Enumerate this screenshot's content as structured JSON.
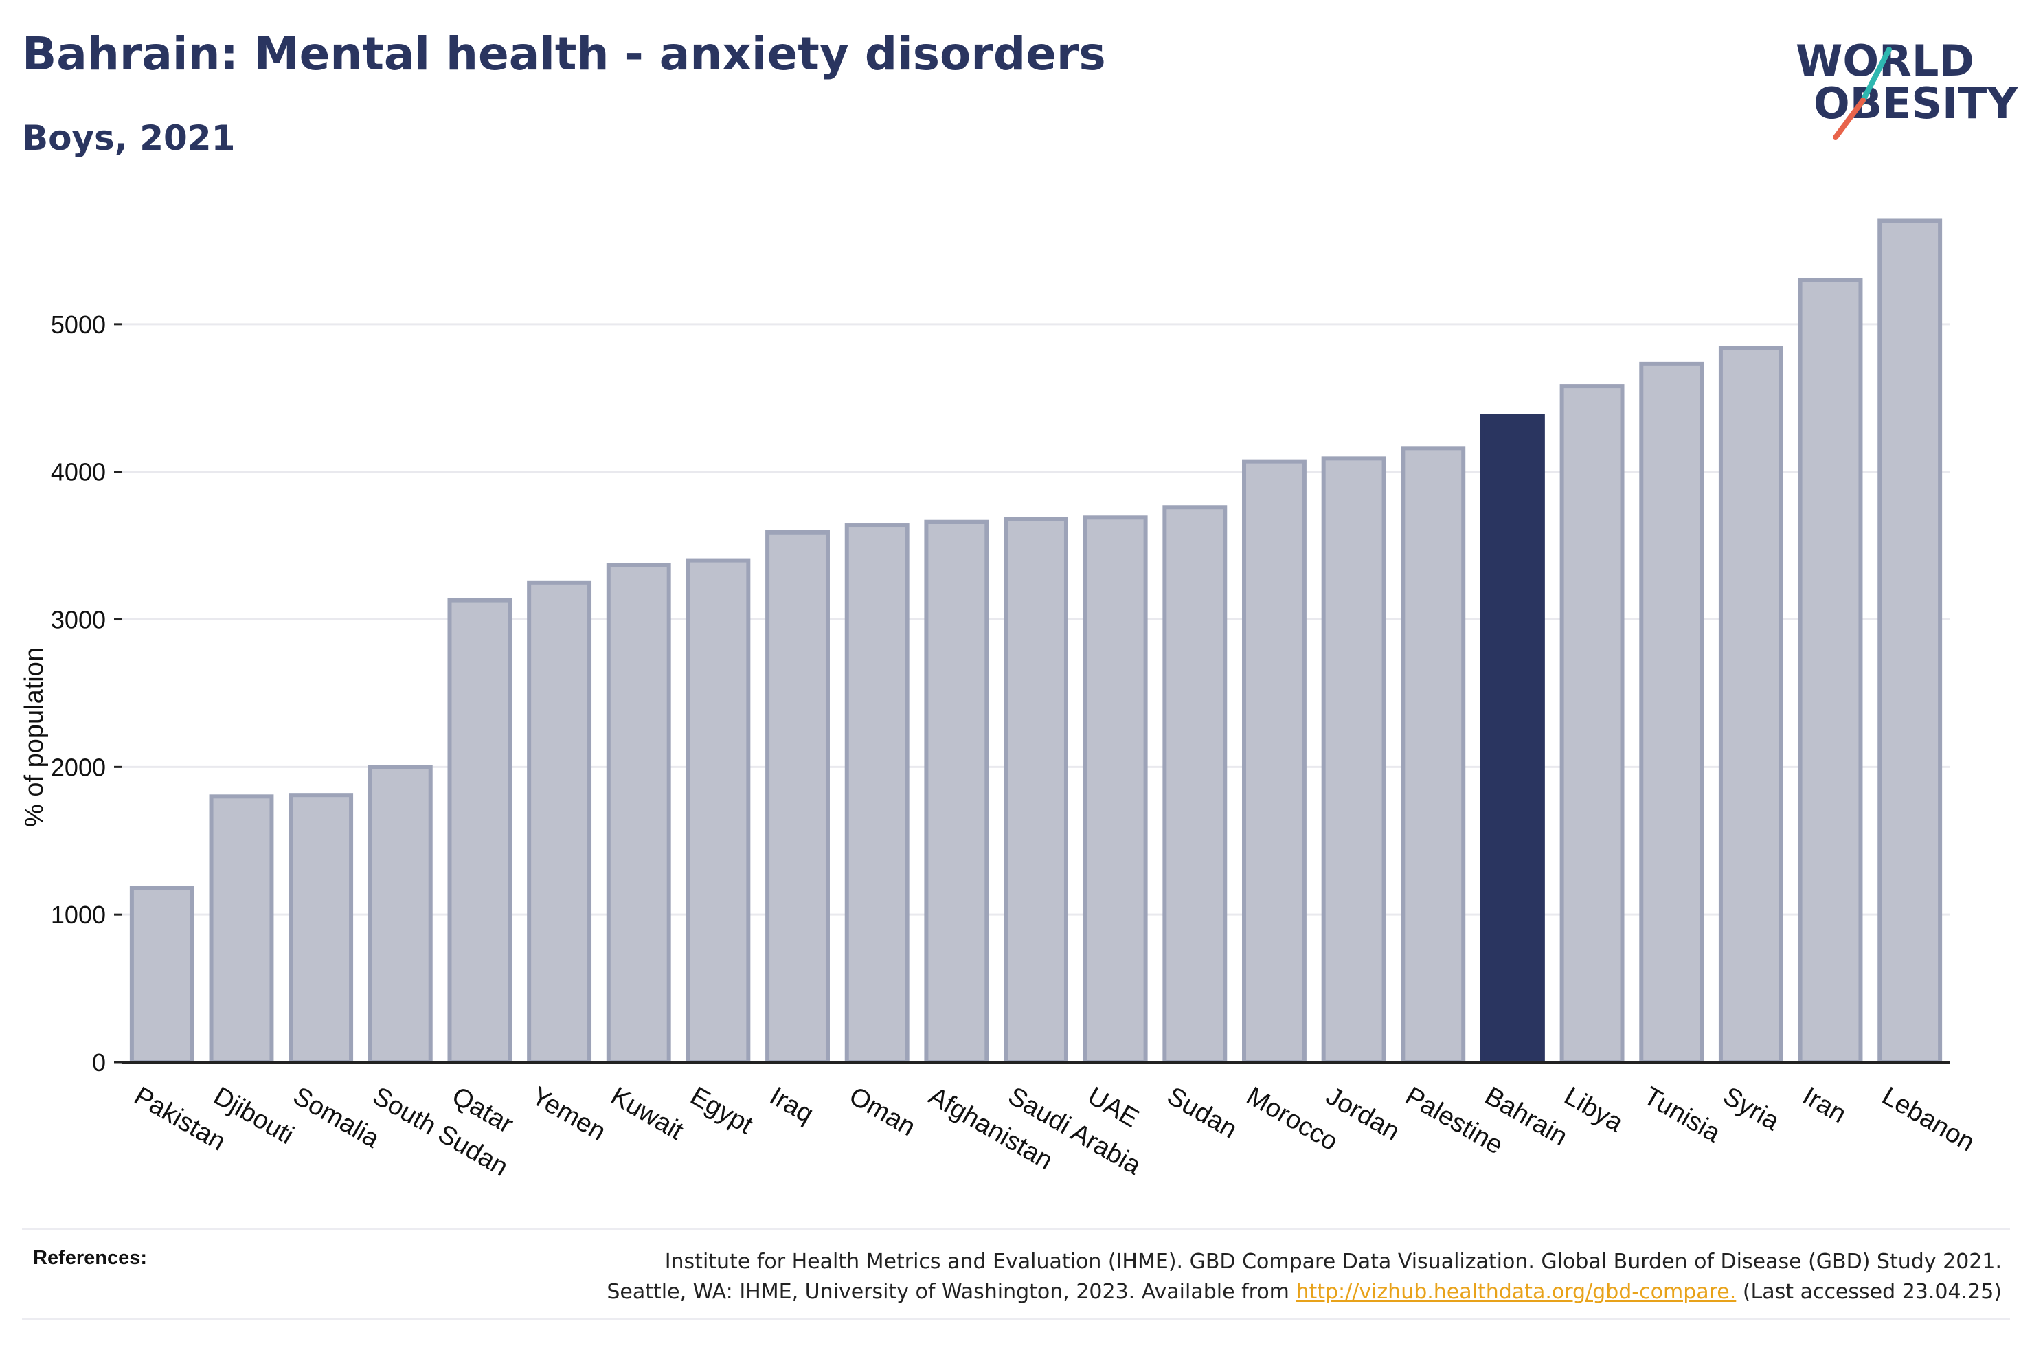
{
  "header": {
    "title": "Bahrain: Mental health - anxiety disorders",
    "subtitle": "Boys, 2021"
  },
  "logo": {
    "line1": "WORLD",
    "line2": "OBESITY",
    "colors": {
      "text": "#2a3560",
      "slash_orange": "#e8634a",
      "slash_teal": "#2fb7b0"
    }
  },
  "colors": {
    "bar_default_fill": "#bec1cd",
    "bar_default_stroke": "#9da3b8",
    "bar_highlight": "#2a3560",
    "grid": "#e9e9ee",
    "axis": "#222222"
  },
  "chart_data": {
    "type": "bar",
    "title": "Bahrain: Mental health - anxiety disorders",
    "subtitle": "Boys, 2021",
    "xlabel": "",
    "ylabel": "% of population",
    "ylim": [
      0,
      5800
    ],
    "yticks": [
      0,
      1000,
      2000,
      3000,
      4000,
      5000
    ],
    "grid": true,
    "highlight": "Bahrain",
    "categories": [
      "Pakistan",
      "Djibouti",
      "Somalia",
      "South Sudan",
      "Qatar",
      "Yemen",
      "Kuwait",
      "Egypt",
      "Iraq",
      "Oman",
      "Afghanistan",
      "Saudi Arabia",
      "UAE",
      "Sudan",
      "Morocco",
      "Jordan",
      "Palestine",
      "Bahrain",
      "Libya",
      "Tunisia",
      "Syria",
      "Iran",
      "Lebanon"
    ],
    "values": [
      1180,
      1800,
      1810,
      2000,
      3130,
      3250,
      3370,
      3400,
      3590,
      3640,
      3660,
      3680,
      3690,
      3760,
      4070,
      4090,
      4160,
      4380,
      4580,
      4730,
      4840,
      5300,
      5700
    ]
  },
  "references": {
    "label": "References:",
    "line1": "Institute for Health Metrics and Evaluation (IHME). GBD Compare Data Visualization. Global Burden of Disease (GBD) Study 2021.",
    "line2_prefix": "Seattle, WA: IHME, University of Washington, 2023. Available from ",
    "link": "http://vizhub.healthdata.org/gbd-compare.",
    "line2_suffix": " (Last accessed 23.04.25)"
  }
}
